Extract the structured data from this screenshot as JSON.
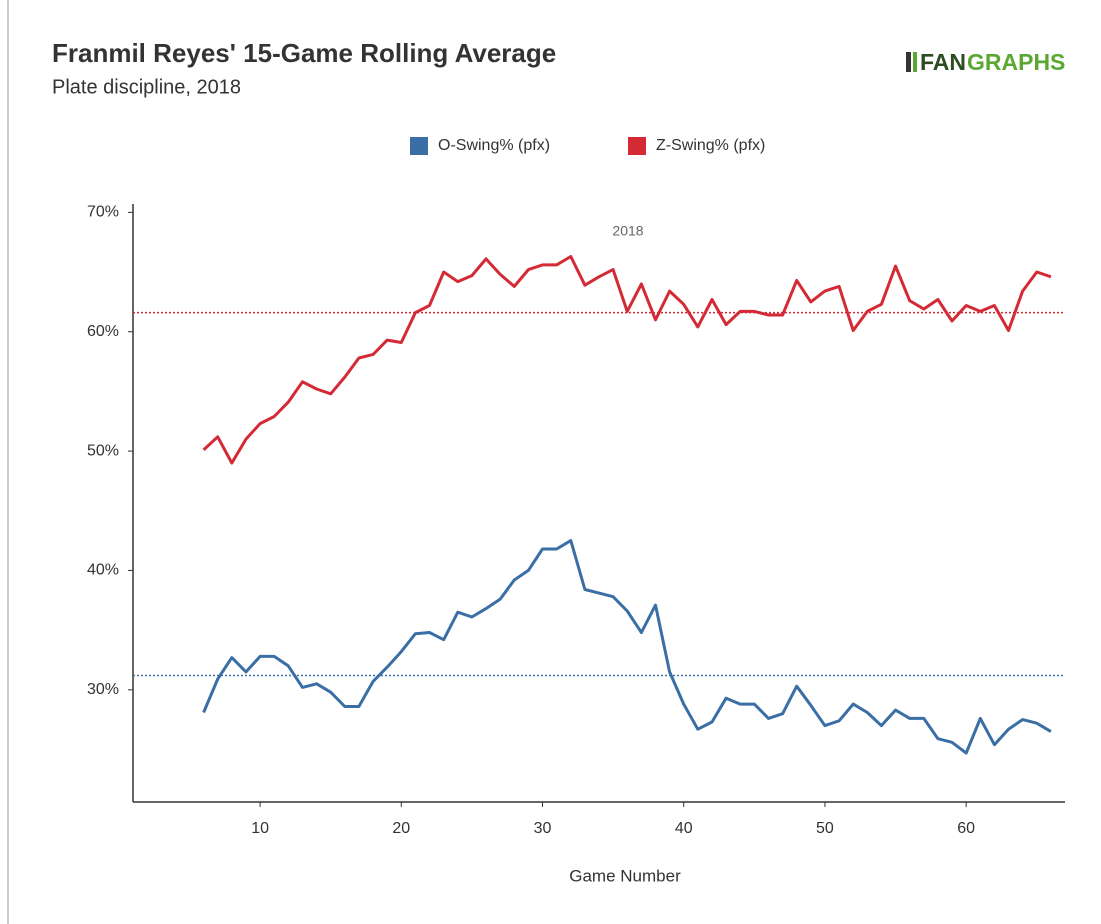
{
  "chart_data": {
    "type": "line",
    "title": "Franmil Reyes' 15-Game Rolling Average",
    "subtitle": "Plate discipline, 2018",
    "logo": [
      "FAN",
      "GRAPHS"
    ],
    "annotation": "2018",
    "x_label": "Game Number",
    "x": [
      6,
      7,
      8,
      9,
      10,
      11,
      12,
      13,
      14,
      15,
      16,
      17,
      18,
      19,
      20,
      21,
      22,
      23,
      24,
      25,
      26,
      27,
      28,
      29,
      30,
      31,
      32,
      33,
      34,
      35,
      36,
      37,
      38,
      39,
      40,
      41,
      42,
      43,
      44,
      45,
      46,
      47,
      48,
      49,
      50,
      51,
      52,
      53,
      54,
      55,
      56,
      57,
      58,
      59,
      60,
      61,
      62,
      63,
      64,
      65,
      66
    ],
    "series": [
      {
        "name": "O-Swing% (pfx)",
        "color": "#3a6ea5",
        "average": 31.2,
        "values": [
          28.1,
          30.9,
          32.7,
          31.5,
          32.8,
          32.8,
          32.0,
          30.2,
          30.5,
          29.8,
          28.6,
          28.6,
          30.7,
          31.9,
          33.2,
          34.7,
          34.8,
          34.2,
          36.5,
          36.1,
          36.8,
          37.6,
          39.2,
          40.0,
          41.8,
          41.8,
          42.5,
          38.4,
          38.1,
          37.8,
          36.6,
          34.8,
          37.1,
          31.5,
          28.8,
          26.7,
          27.3,
          29.3,
          28.8,
          28.8,
          27.6,
          28.0,
          30.3,
          28.7,
          27.0,
          27.4,
          28.8,
          28.1,
          27.0,
          28.3,
          27.6,
          27.6,
          25.9,
          25.6,
          24.7,
          27.6,
          25.4,
          26.7,
          27.5,
          27.2,
          26.5
        ]
      },
      {
        "name": "Z-Swing% (pfx)",
        "color": "#d42a35",
        "average": 61.6,
        "values": [
          50.1,
          51.2,
          49.0,
          51.0,
          52.3,
          52.9,
          54.1,
          55.8,
          55.2,
          54.8,
          56.2,
          57.8,
          58.1,
          59.3,
          59.1,
          61.6,
          62.2,
          65.0,
          64.2,
          64.7,
          66.1,
          64.8,
          63.8,
          65.2,
          65.6,
          65.6,
          66.3,
          63.9,
          64.6,
          65.2,
          61.7,
          64.0,
          61.0,
          63.4,
          62.3,
          60.4,
          62.7,
          60.6,
          61.7,
          61.7,
          61.4,
          61.4,
          64.3,
          62.5,
          63.4,
          63.8,
          60.1,
          61.7,
          62.3,
          65.5,
          62.6,
          61.9,
          62.7,
          60.9,
          62.2,
          61.7,
          62.2,
          60.1,
          63.4,
          65.0,
          64.6
        ]
      }
    ],
    "xlim": [
      1,
      67
    ],
    "xticks": [
      10,
      20,
      30,
      40,
      50,
      60
    ],
    "ylim": [
      20.6,
      70.7
    ],
    "yticks": [
      {
        "value": 30,
        "label": "30%"
      },
      {
        "value": 40,
        "label": "40%"
      },
      {
        "value": 50,
        "label": "50%"
      },
      {
        "value": 60,
        "label": "60%"
      },
      {
        "value": 70,
        "label": "70%"
      }
    ],
    "grid": false,
    "legend": "top"
  }
}
